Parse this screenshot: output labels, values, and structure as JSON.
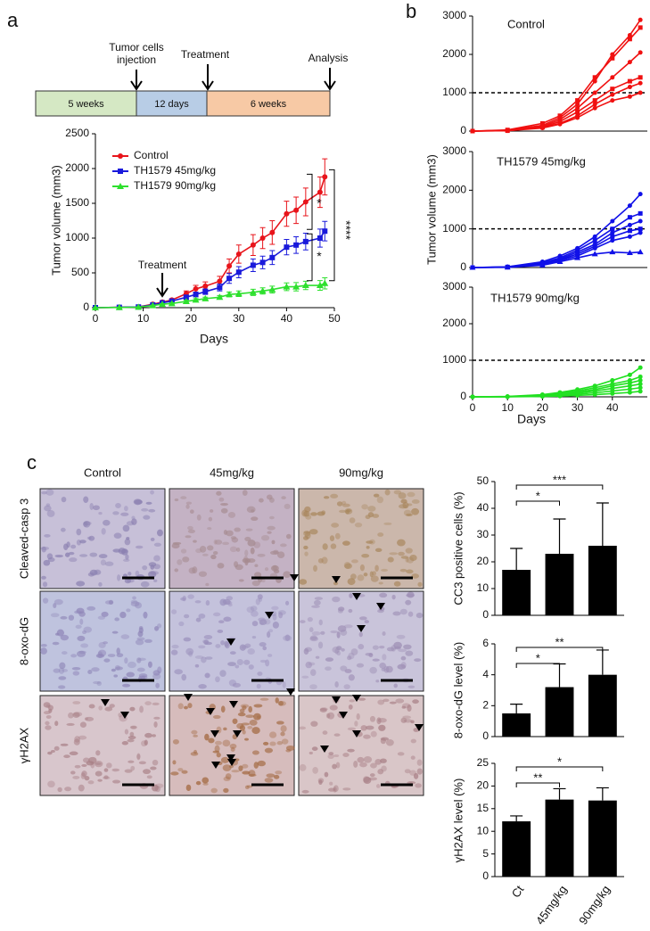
{
  "panel_labels": [
    "a",
    "b",
    "c"
  ],
  "timeline": {
    "segments": [
      "5 weeks",
      "12 days",
      "6 weeks"
    ],
    "events": [
      "Tumor cells injection",
      "Treatment",
      "Analysis"
    ]
  },
  "images": {
    "columns": [
      "Control",
      "45mg/kg",
      "90mg/kg"
    ],
    "rows": [
      "Cleaved-casp 3",
      "8-oxo-dG",
      "γH2AX"
    ]
  },
  "chart_data": [
    {
      "type": "line",
      "xlabel": "Days",
      "ylabel": "Tumor volume (mm3)",
      "xlim": [
        0,
        50
      ],
      "xticks": [
        0,
        10,
        20,
        30,
        40,
        50
      ],
      "ylim": [
        0,
        2500
      ],
      "yticks": [
        0,
        500,
        1000,
        1500,
        2000,
        2500
      ],
      "legend": "upper left",
      "x": [
        0,
        5,
        9,
        12,
        14,
        16,
        19,
        21,
        23,
        26,
        28,
        30,
        33,
        35,
        37,
        40,
        42,
        44,
        47,
        48
      ],
      "series": [
        {
          "name": "Control",
          "color": "#e8141b",
          "marker": "circle",
          "values": [
            0,
            5,
            10,
            50,
            80,
            110,
            200,
            270,
            310,
            380,
            600,
            770,
            900,
            1000,
            1080,
            1350,
            1400,
            1520,
            1660,
            1880
          ],
          "errors": [
            0,
            2,
            5,
            10,
            15,
            20,
            40,
            50,
            60,
            70,
            100,
            130,
            150,
            150,
            170,
            180,
            190,
            200,
            220,
            260
          ]
        },
        {
          "name": "TH1579 45mg/kg",
          "color": "#1a1adb",
          "marker": "square",
          "values": [
            0,
            5,
            10,
            40,
            70,
            95,
            150,
            190,
            230,
            290,
            420,
            510,
            610,
            650,
            720,
            870,
            900,
            950,
            1000,
            1100
          ],
          "errors": [
            0,
            2,
            4,
            8,
            12,
            15,
            30,
            35,
            40,
            50,
            70,
            80,
            90,
            90,
            100,
            110,
            120,
            120,
            130,
            140
          ]
        },
        {
          "name": "TH1579 90mg/kg",
          "color": "#2ee02e",
          "marker": "triangle",
          "values": [
            0,
            3,
            8,
            30,
            50,
            60,
            90,
            110,
            130,
            150,
            190,
            200,
            220,
            240,
            260,
            300,
            300,
            320,
            320,
            350
          ],
          "errors": [
            0,
            1,
            3,
            5,
            8,
            10,
            15,
            20,
            20,
            25,
            35,
            40,
            45,
            45,
            50,
            55,
            60,
            60,
            70,
            80
          ]
        }
      ],
      "annotations": [
        {
          "text": "Treatment",
          "x": 14
        },
        {
          "text": "*"
        },
        {
          "text": "*"
        },
        {
          "text": "****"
        }
      ]
    },
    {
      "type": "line",
      "title": "Control",
      "xlim": [
        0,
        50
      ],
      "ylim": [
        0,
        3000
      ],
      "yticks": [
        0,
        1000,
        2000,
        3000
      ],
      "threshold": 1000,
      "x": [
        0,
        10,
        20,
        25,
        30,
        35,
        40,
        45,
        48
      ],
      "series": [
        {
          "color": "#f01010",
          "marker": "circle",
          "values": [
            0,
            20,
            150,
            350,
            700,
            1300,
            2000,
            2500,
            2900
          ]
        },
        {
          "color": "#f01010",
          "marker": "square",
          "values": [
            0,
            30,
            200,
            400,
            800,
            1400,
            1900,
            2400,
            2700
          ]
        },
        {
          "color": "#f01010",
          "marker": "circle",
          "values": [
            0,
            20,
            120,
            300,
            600,
            1000,
            1400,
            1800,
            2050
          ]
        },
        {
          "color": "#f01010",
          "marker": "square",
          "values": [
            0,
            10,
            100,
            250,
            500,
            800,
            1100,
            1300,
            1400
          ]
        },
        {
          "color": "#f01010",
          "marker": "circle",
          "values": [
            0,
            15,
            90,
            200,
            400,
            700,
            950,
            1150,
            1250
          ]
        },
        {
          "color": "#f01010",
          "marker": "circle",
          "values": [
            0,
            10,
            80,
            180,
            350,
            600,
            800,
            900,
            1000
          ]
        }
      ]
    },
    {
      "type": "line",
      "title": "TH1579 45mg/kg",
      "ylabel": "Tumor volume (mm3)",
      "xlim": [
        0,
        50
      ],
      "ylim": [
        0,
        3000
      ],
      "yticks": [
        0,
        1000,
        2000,
        3000
      ],
      "threshold": 1000,
      "x": [
        0,
        10,
        20,
        25,
        30,
        35,
        40,
        45,
        48
      ],
      "series": [
        {
          "color": "#1010e8",
          "marker": "circle",
          "values": [
            0,
            20,
            150,
            300,
            500,
            800,
            1200,
            1600,
            1900
          ]
        },
        {
          "color": "#1010e8",
          "marker": "square",
          "values": [
            0,
            15,
            120,
            250,
            450,
            700,
            1000,
            1300,
            1400
          ]
        },
        {
          "color": "#1010e8",
          "marker": "circle",
          "values": [
            0,
            10,
            100,
            220,
            400,
            600,
            900,
            1100,
            1200
          ]
        },
        {
          "color": "#1010e8",
          "marker": "square",
          "values": [
            0,
            10,
            90,
            200,
            350,
            550,
            800,
            950,
            1000
          ]
        },
        {
          "color": "#1010e8",
          "marker": "circle",
          "values": [
            0,
            10,
            80,
            180,
            300,
            500,
            700,
            800,
            900
          ]
        },
        {
          "color": "#1010e8",
          "marker": "triangle",
          "values": [
            0,
            5,
            60,
            150,
            250,
            350,
            400,
            380,
            400
          ]
        }
      ]
    },
    {
      "type": "line",
      "title": "TH1579 90mg/kg",
      "xlabel": "Days",
      "xlim": [
        0,
        50
      ],
      "xticks": [
        0,
        10,
        20,
        30,
        40
      ],
      "ylim": [
        0,
        3000
      ],
      "yticks": [
        0,
        1000,
        2000,
        3000
      ],
      "threshold": 1000,
      "x": [
        0,
        10,
        20,
        25,
        30,
        35,
        40,
        45,
        48
      ],
      "series": [
        {
          "color": "#22e022",
          "marker": "circle",
          "values": [
            0,
            10,
            60,
            120,
            200,
            300,
            450,
            600,
            800
          ]
        },
        {
          "color": "#22e022",
          "marker": "circle",
          "values": [
            0,
            5,
            50,
            100,
            160,
            250,
            350,
            450,
            550
          ]
        },
        {
          "color": "#22e022",
          "marker": "circle",
          "values": [
            0,
            5,
            40,
            80,
            130,
            200,
            300,
            380,
            450
          ]
        },
        {
          "color": "#22e022",
          "marker": "circle",
          "values": [
            0,
            5,
            30,
            60,
            100,
            160,
            230,
            300,
            350
          ]
        },
        {
          "color": "#22e022",
          "marker": "circle",
          "values": [
            0,
            5,
            20,
            40,
            70,
            110,
            160,
            210,
            250
          ]
        },
        {
          "color": "#22e022",
          "marker": "circle",
          "values": [
            0,
            2,
            10,
            20,
            40,
            60,
            90,
            120,
            150
          ]
        }
      ]
    },
    {
      "type": "bar",
      "ylabel": "CC3 positive cells (%)",
      "ylim": [
        0,
        50
      ],
      "yticks": [
        0,
        10,
        20,
        30,
        40,
        50
      ],
      "color": "#000000",
      "values": [
        17,
        23,
        26
      ],
      "errors": [
        8,
        13,
        16
      ],
      "annotations": [
        "*",
        "***"
      ]
    },
    {
      "type": "bar",
      "ylabel": "8-oxo-dG level (%)",
      "ylim": [
        0,
        6
      ],
      "yticks": [
        0,
        2,
        4,
        6
      ],
      "color": "#000000",
      "values": [
        1.5,
        3.2,
        4.0
      ],
      "errors": [
        0.6,
        1.5,
        1.6
      ],
      "annotations": [
        "*",
        "**"
      ]
    },
    {
      "type": "bar",
      "ylabel": "γH2AX level (%)",
      "ylim": [
        0,
        25
      ],
      "yticks": [
        0,
        5,
        10,
        15,
        20,
        25
      ],
      "color": "#000000",
      "categories": [
        "Ct",
        "45mg/kg",
        "90mg/kg"
      ],
      "values": [
        12.2,
        17,
        16.8
      ],
      "errors": [
        1.2,
        2.4,
        2.8
      ],
      "annotations": [
        "**",
        "*"
      ]
    }
  ]
}
